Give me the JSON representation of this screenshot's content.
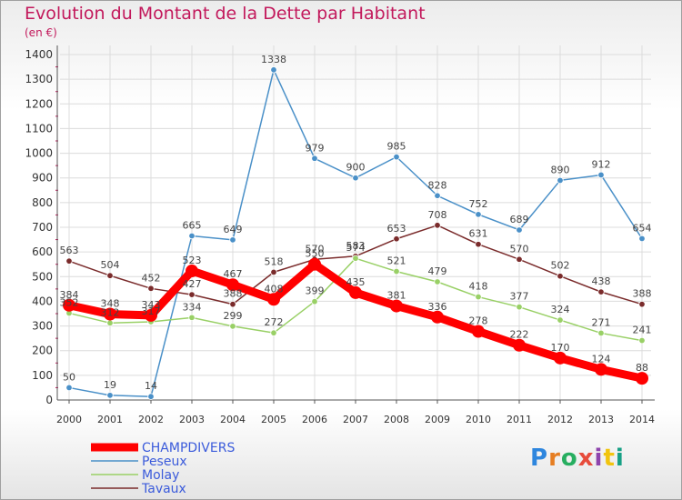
{
  "header": {
    "title": "Evolution du Montant de la Dette par Habitant",
    "unit": "(en €)"
  },
  "brand": {
    "name": "Proxiti"
  },
  "colors": {
    "title": "#c2185b",
    "grid": "#dcdcdc",
    "axis": "#555555",
    "tick_minor": "#c2185b"
  },
  "chart_data": {
    "type": "line",
    "title": "Evolution du Montant de la Dette par Habitant",
    "ylabel": "(en €)",
    "xlabel": "",
    "x": [
      "2000",
      "2001",
      "2002",
      "2003",
      "2004",
      "2005",
      "2006",
      "2007",
      "2008",
      "2009",
      "2010",
      "2011",
      "2012",
      "2013",
      "2014"
    ],
    "ylim": [
      0,
      1400
    ],
    "yticks": [
      0,
      100,
      200,
      300,
      400,
      500,
      600,
      700,
      800,
      900,
      1000,
      1100,
      1200,
      1300,
      1400
    ],
    "grid": true,
    "legend_position": "bottom-left",
    "series": [
      {
        "name": "CHAMPDIVERS",
        "color": "#ff0000",
        "values": [
          384,
          348,
          343,
          523,
          467,
          408,
          550,
          435,
          381,
          336,
          278,
          222,
          170,
          124,
          88
        ]
      },
      {
        "name": "Peseux",
        "color": "#4a90c8",
        "values": [
          50,
          19,
          14,
          665,
          649,
          1338,
          979,
          900,
          985,
          828,
          752,
          689,
          890,
          912,
          654
        ]
      },
      {
        "name": "Molay",
        "color": "#99d066",
        "values": [
          352,
          312,
          317,
          334,
          299,
          272,
          399,
          574,
          521,
          479,
          418,
          377,
          324,
          271,
          241
        ]
      },
      {
        "name": "Tavaux",
        "color": "#7a2b2b",
        "values": [
          563,
          504,
          452,
          427,
          388,
          518,
          570,
          583,
          653,
          708,
          631,
          570,
          502,
          438,
          388
        ]
      }
    ]
  }
}
